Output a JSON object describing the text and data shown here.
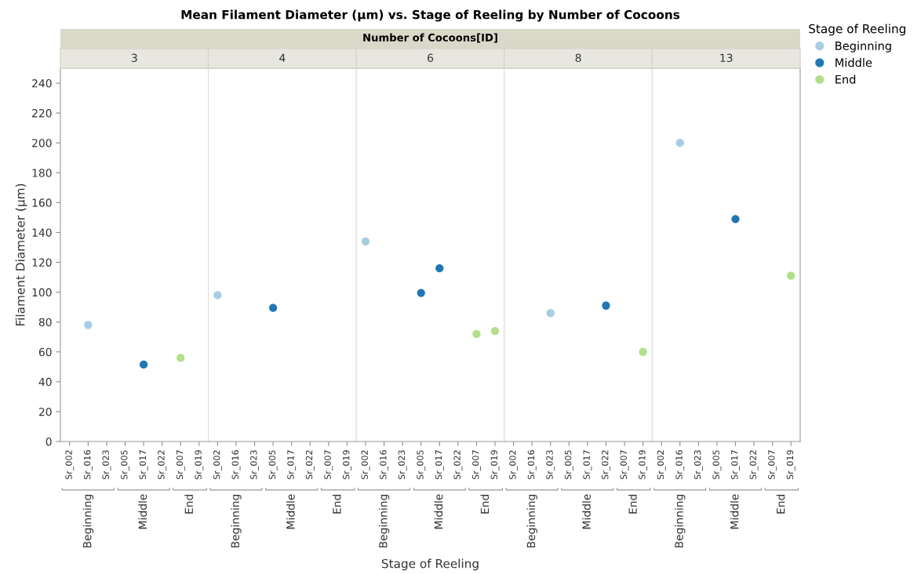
{
  "chart_data": [
    {
      "type": "scatter",
      "subtitle": "3",
      "ylabel": "Filament Diameter (µm)",
      "annotations": [
        "Beginning",
        "Middle",
        "End"
      ],
      "categories": [
        "Sr_002",
        "Sr_016",
        "Sr_023",
        "Sr_005",
        "Sr_017",
        "Sr_022",
        "Sr_007",
        "Sr_019"
      ],
      "ylim": [
        0,
        250
      ],
      "yticks": [
        0,
        20,
        40,
        60,
        80,
        100,
        120,
        140,
        160,
        180,
        200,
        220,
        240
      ],
      "marker": "circle",
      "grid": false,
      "series": [
        {
          "color": "#a6cee3",
          "values": [
            null,
            78,
            null,
            null,
            null,
            null,
            null,
            null
          ]
        },
        {
          "color": "#1f78b4",
          "values": [
            null,
            null,
            null,
            null,
            51.5,
            null,
            null,
            null
          ]
        },
        {
          "color": "#b2df8a",
          "values": [
            null,
            null,
            null,
            null,
            null,
            null,
            56,
            null
          ]
        }
      ]
    },
    {
      "type": "scatter",
      "subtitle": "4",
      "annotations": [
        "Beginning",
        "Middle",
        "End"
      ],
      "categories": [
        "Sr_002",
        "Sr_016",
        "Sr_023",
        "Sr_005",
        "Sr_017",
        "Sr_022",
        "Sr_007",
        "Sr_019"
      ],
      "ylim": [
        0,
        250
      ],
      "tick_labels": "x",
      "marker": "circle",
      "grid": false,
      "series": [
        {
          "color": "#a6cee3",
          "values": [
            98,
            null,
            null,
            null,
            null,
            null,
            null,
            null
          ]
        },
        {
          "color": "#1f78b4",
          "values": [
            null,
            null,
            null,
            89.5,
            null,
            null,
            null,
            null
          ]
        },
        {
          "color": "#b2df8a",
          "values": [
            null,
            null,
            null,
            null,
            null,
            null,
            null,
            null
          ]
        }
      ]
    },
    {
      "type": "scatter",
      "title": "Mean Filament Diameter (µm) vs. Stage of Reeling by Number of Cocoons",
      "subtitle": "6",
      "xlabel": "Stage of Reeling",
      "annotations": [
        "Number of Cocoons[ID]",
        "Beginning",
        "Middle",
        "End"
      ],
      "categories": [
        "Sr_002",
        "Sr_016",
        "Sr_023",
        "Sr_005",
        "Sr_017",
        "Sr_022",
        "Sr_007",
        "Sr_019"
      ],
      "ylim": [
        0,
        250
      ],
      "tick_labels": "x",
      "marker": "circle",
      "grid": false,
      "series": [
        {
          "color": "#a6cee3",
          "values": [
            134,
            null,
            null,
            null,
            null,
            null,
            null,
            null
          ]
        },
        {
          "color": "#1f78b4",
          "values": [
            null,
            null,
            null,
            99.5,
            116,
            null,
            null,
            null
          ]
        },
        {
          "color": "#b2df8a",
          "values": [
            null,
            null,
            null,
            null,
            null,
            null,
            72,
            74
          ]
        }
      ]
    },
    {
      "type": "scatter",
      "subtitle": "8",
      "annotations": [
        "Beginning",
        "Middle",
        "End"
      ],
      "categories": [
        "Sr_002",
        "Sr_016",
        "Sr_023",
        "Sr_005",
        "Sr_017",
        "Sr_022",
        "Sr_007",
        "Sr_019"
      ],
      "ylim": [
        0,
        250
      ],
      "tick_labels": "x",
      "marker": "circle",
      "grid": false,
      "series": [
        {
          "color": "#a6cee3",
          "values": [
            null,
            null,
            86,
            null,
            null,
            null,
            null,
            null
          ]
        },
        {
          "color": "#1f78b4",
          "values": [
            null,
            null,
            null,
            null,
            null,
            91,
            null,
            null
          ]
        },
        {
          "color": "#b2df8a",
          "values": [
            null,
            null,
            null,
            null,
            null,
            null,
            null,
            60
          ]
        }
      ]
    },
    {
      "type": "scatter",
      "subtitle": "13",
      "legend_title": "Stage of Reeling",
      "legend": "top right",
      "annotations": [
        "Beginning",
        "Middle",
        "End"
      ],
      "categories": [
        "Sr_002",
        "Sr_016",
        "Sr_023",
        "Sr_005",
        "Sr_017",
        "Sr_022",
        "Sr_007",
        "Sr_019"
      ],
      "ylim": [
        0,
        250
      ],
      "tick_labels": "x",
      "marker": "circle",
      "grid": false,
      "series": [
        {
          "name": "Beginning",
          "color": "#a6cee3",
          "values": [
            null,
            200,
            null,
            null,
            null,
            null,
            null,
            null
          ]
        },
        {
          "name": "Middle",
          "color": "#1f78b4",
          "values": [
            null,
            null,
            null,
            null,
            149,
            null,
            null,
            null
          ]
        },
        {
          "name": "End",
          "color": "#b2df8a",
          "values": [
            null,
            null,
            null,
            null,
            null,
            null,
            null,
            111
          ]
        }
      ]
    }
  ]
}
